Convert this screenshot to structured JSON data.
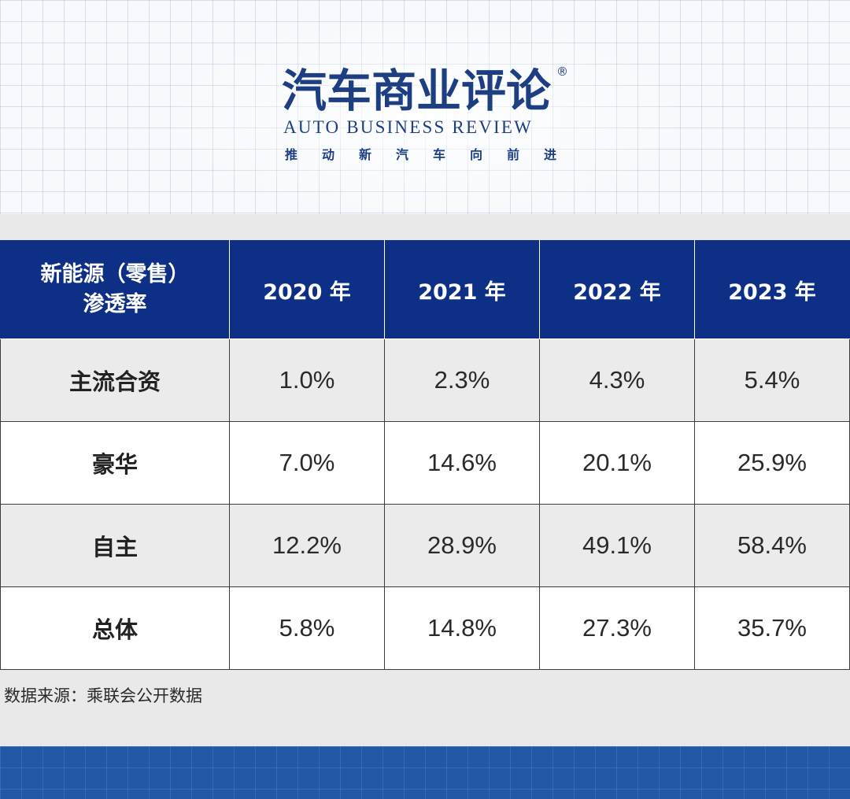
{
  "logo": {
    "title": "汽车商业评论",
    "registered_mark": "®",
    "english": "AUTO BUSINESS REVIEW",
    "slogan": "推动新汽车向前进"
  },
  "table": {
    "header_label_line1": "新能源（零售）",
    "header_label_line2": "渗透率",
    "columns": [
      "2020 年",
      "2021 年",
      "2022 年",
      "2023 年"
    ],
    "rows": [
      {
        "label": "主流合资",
        "values": [
          "1.0%",
          "2.3%",
          "4.3%",
          "5.4%"
        ]
      },
      {
        "label": "豪华",
        "values": [
          "7.0%",
          "14.6%",
          "20.1%",
          "25.9%"
        ]
      },
      {
        "label": "自主",
        "values": [
          "12.2%",
          "28.9%",
          "49.1%",
          "58.4%"
        ]
      },
      {
        "label": "总体",
        "values": [
          "5.8%",
          "14.8%",
          "27.3%",
          "35.7%"
        ]
      }
    ]
  },
  "source_note": "数据来源：乘联会公开数据",
  "colors": {
    "header_blue": "#0d2f86",
    "logo_blue": "#1d3f82",
    "footer_blue": "#2358a7"
  }
}
